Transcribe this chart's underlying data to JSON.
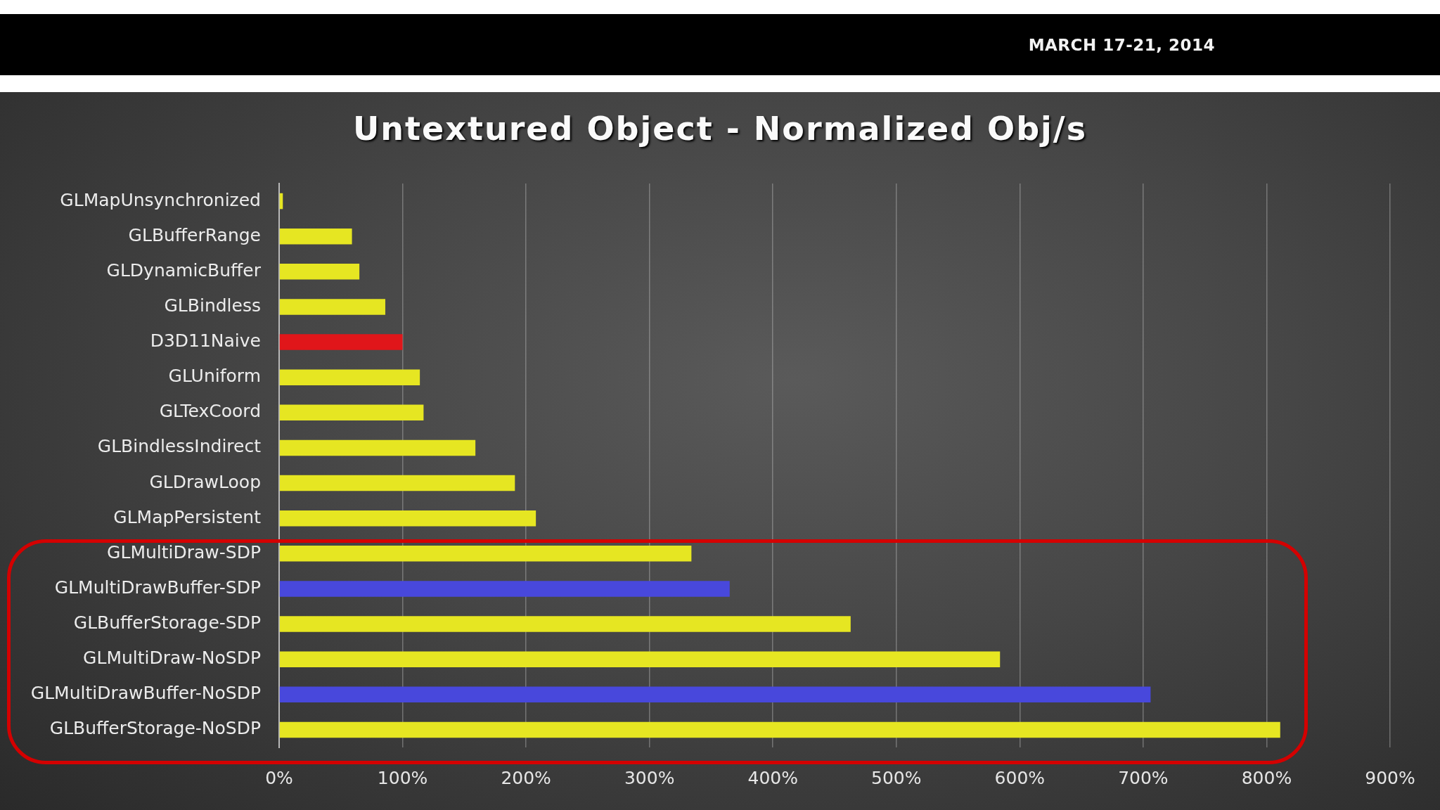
{
  "chart_data": {
    "type": "bar",
    "orientation": "horizontal",
    "title": "Untextured Object - Normalized Obj/s",
    "annotations": [
      "MARCH 17-21, 2014"
    ],
    "categories": [
      "GLMapUnsynchronized",
      "GLBufferRange",
      "GLDynamicBuffer",
      "GLBindless",
      "D3D11Naive",
      "GLUniform",
      "GLTexCoord",
      "GLBindlessIndirect",
      "GLDrawLoop",
      "GLMapPersistent",
      "GLMultiDraw-SDP",
      "GLMultiDrawBuffer-SDP",
      "GLBufferStorage-SDP",
      "GLMultiDraw-NoSDP",
      "GLMultiDrawBuffer-NoSDP",
      "GLBufferStorage-NoSDP"
    ],
    "values": [
      3,
      59,
      65,
      86,
      100,
      114,
      117,
      159,
      191,
      208,
      334,
      365,
      463,
      584,
      706,
      811
    ],
    "colors": [
      "#e6e622",
      "#e6e622",
      "#e6e622",
      "#e6e622",
      "#e0161a",
      "#e6e622",
      "#e6e622",
      "#e6e622",
      "#e6e622",
      "#e6e622",
      "#e6e622",
      "#4848dc",
      "#e6e622",
      "#e6e622",
      "#4848dc",
      "#e6e622"
    ],
    "xlim": [
      0,
      900
    ],
    "xticks": [
      {
        "value": 0,
        "label": "0%"
      },
      {
        "value": 100,
        "label": "100%"
      },
      {
        "value": 200,
        "label": "200%"
      },
      {
        "value": 300,
        "label": "300%"
      },
      {
        "value": 400,
        "label": "400%"
      },
      {
        "value": 500,
        "label": "500%"
      },
      {
        "value": 600,
        "label": "600%"
      },
      {
        "value": 700,
        "label": "700%"
      },
      {
        "value": 800,
        "label": "800%"
      },
      {
        "value": 900,
        "label": "900%"
      }
    ],
    "grid": "x"
  }
}
